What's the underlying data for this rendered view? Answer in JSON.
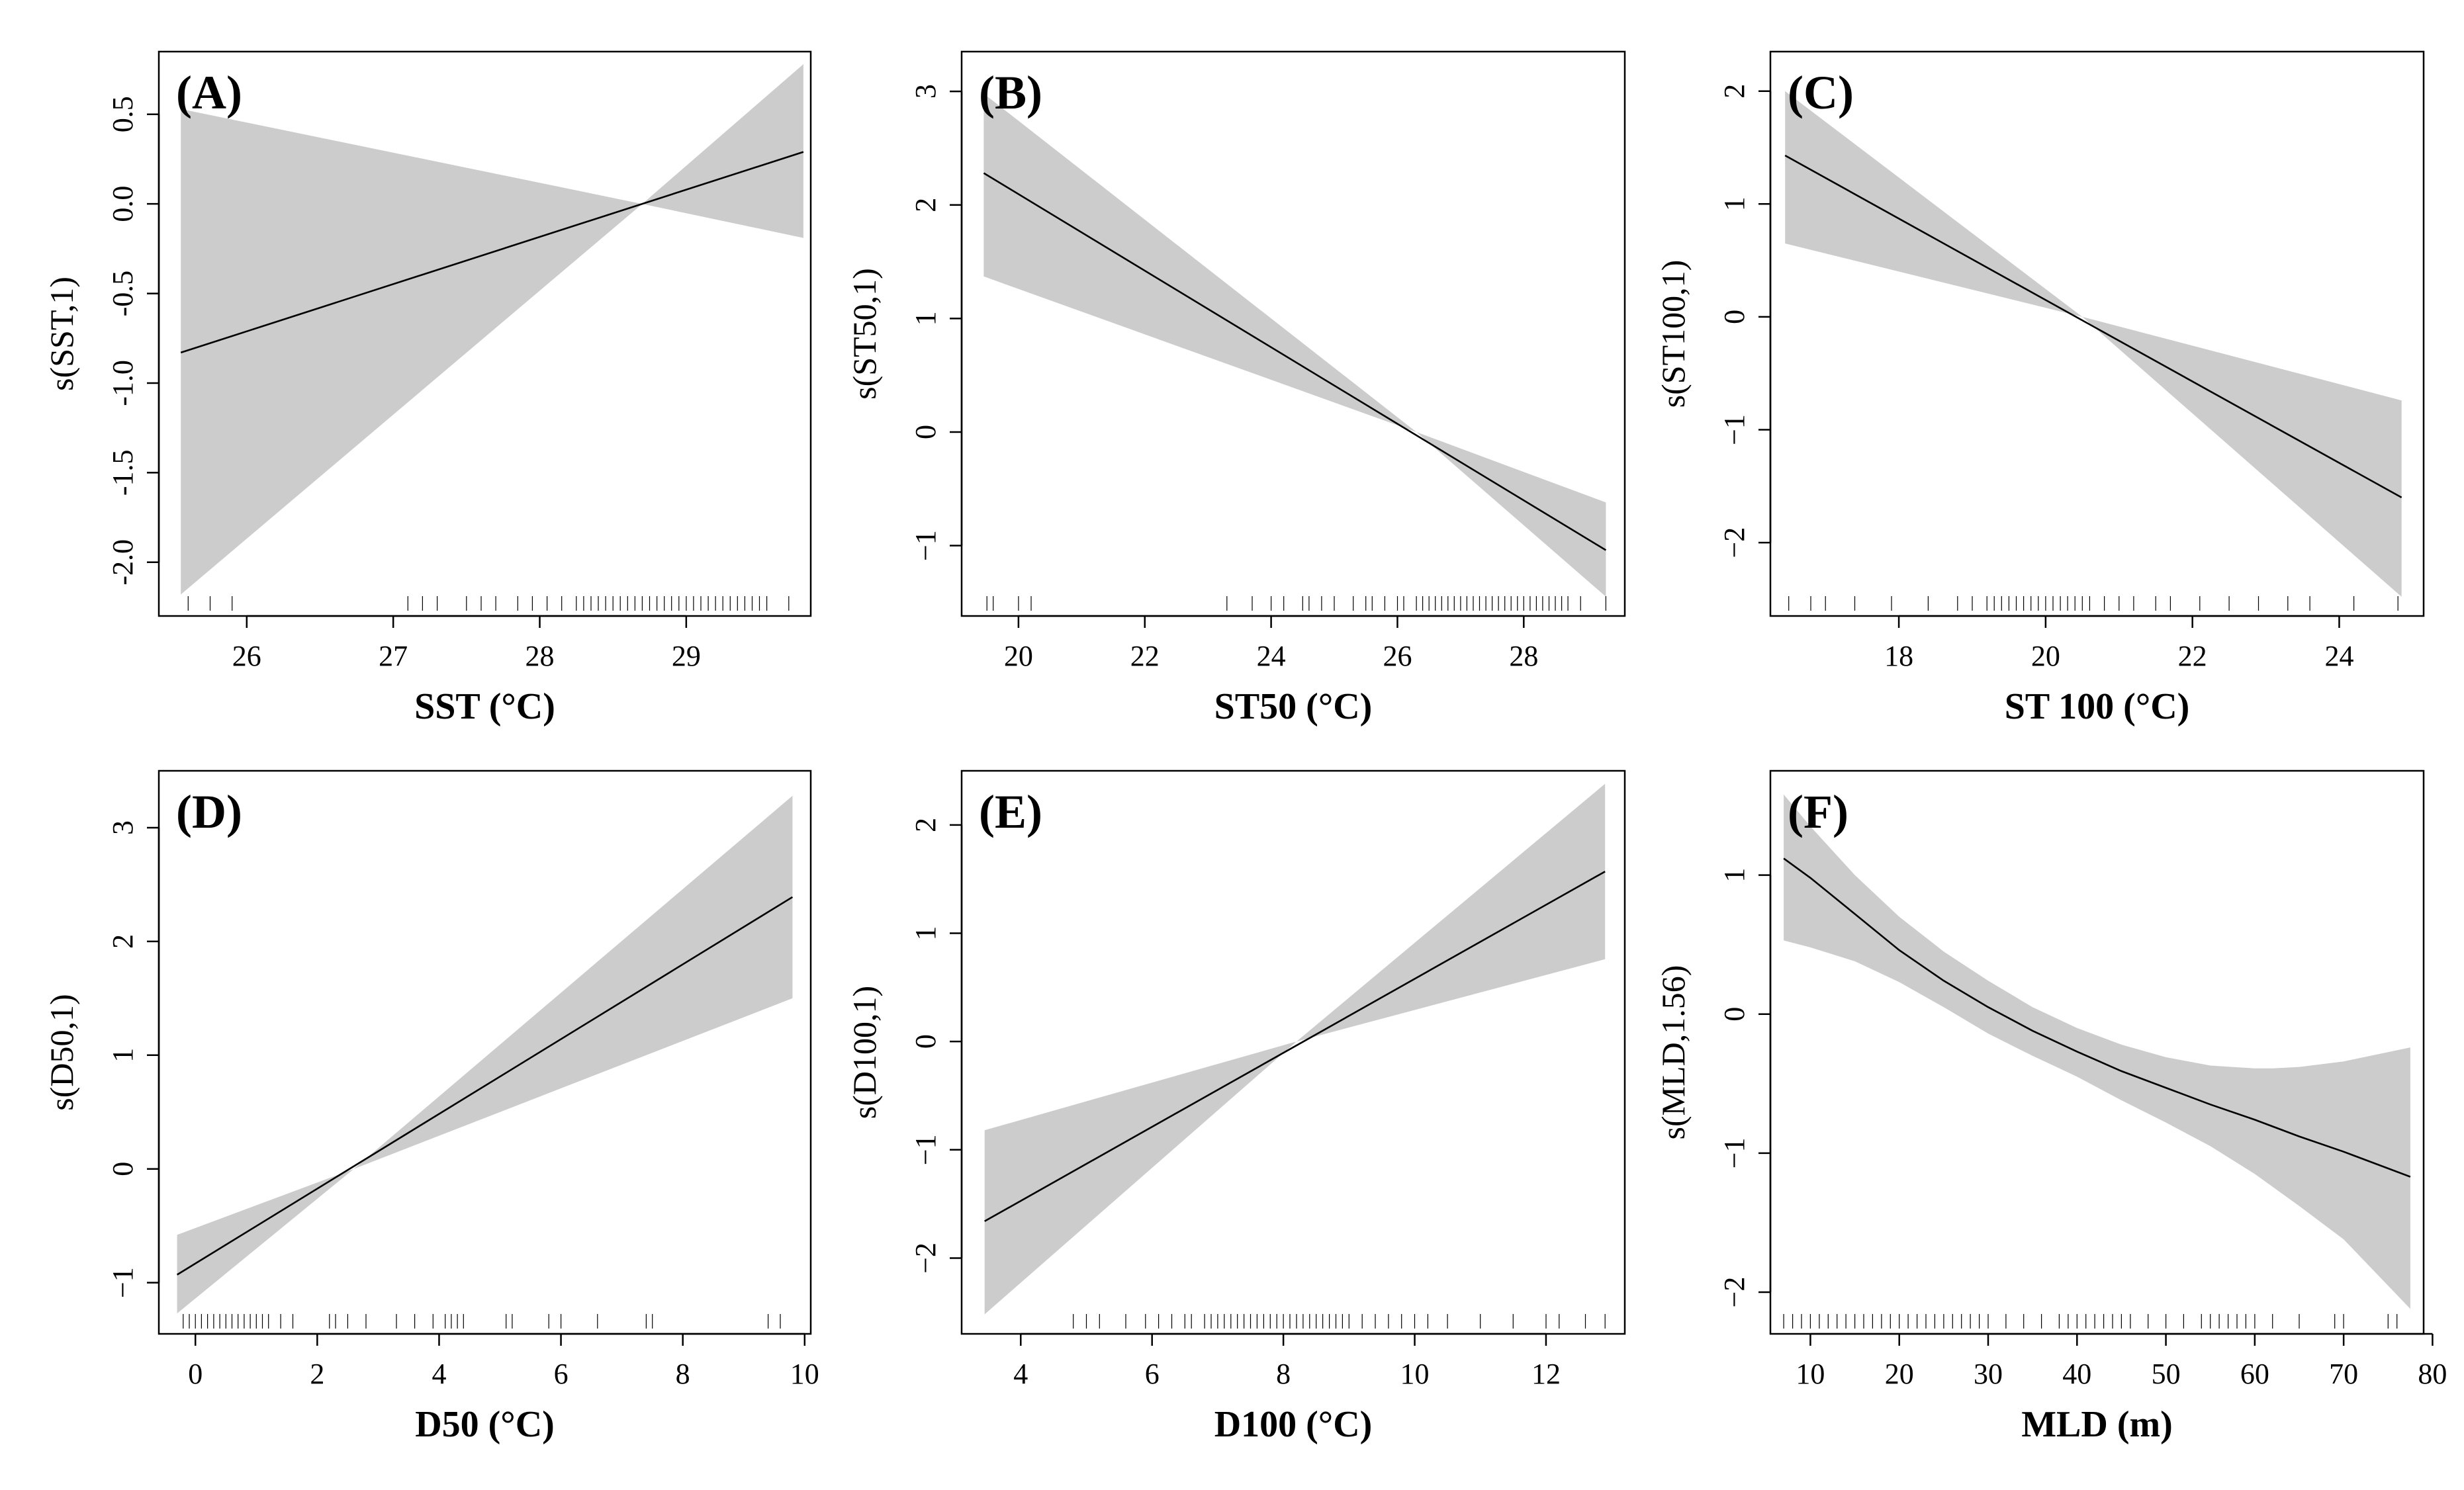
{
  "chart_data": [
    {
      "type": "line",
      "panel_label": "(A)",
      "xlabel": "SST (°C)",
      "ylabel": "s(SST,1)",
      "xlim": [
        25.4,
        29.85
      ],
      "ylim": [
        -2.3,
        0.85
      ],
      "xticks": [
        26,
        27,
        28,
        29
      ],
      "yticks": [
        -2.0,
        -1.5,
        -1.0,
        -0.5,
        0.0,
        0.5
      ],
      "ytick_labels": [
        "-2.0",
        "-1.5",
        "-1.0",
        "-0.5",
        "0.0",
        "0.5"
      ],
      "series": [
        {
          "name": "smooth",
          "x": [
            25.55,
            29.8
          ],
          "y": [
            -0.83,
            0.29
          ]
        },
        {
          "name": "ci_upper",
          "x": [
            25.55,
            28.7,
            29.8
          ],
          "y": [
            0.53,
            0.0,
            -0.19
          ]
        },
        {
          "name": "ci_lower",
          "x": [
            25.55,
            28.7,
            29.8
          ],
          "y": [
            -2.18,
            0.0,
            0.78
          ]
        }
      ],
      "rug": [
        25.6,
        25.75,
        25.9,
        27.1,
        27.2,
        27.3,
        27.5,
        27.6,
        27.7,
        27.85,
        27.95,
        28.05,
        28.15,
        28.25,
        28.3,
        28.35,
        28.4,
        28.45,
        28.5,
        28.55,
        28.6,
        28.65,
        28.7,
        28.75,
        28.8,
        28.85,
        28.9,
        28.95,
        29.0,
        29.05,
        29.1,
        29.15,
        29.2,
        29.25,
        29.3,
        29.35,
        29.4,
        29.45,
        29.5,
        29.55,
        29.7
      ]
    },
    {
      "type": "line",
      "panel_label": "(B)",
      "xlabel": "ST50 (°C)",
      "ylabel": "s(ST50,1)",
      "xlim": [
        19.1,
        29.6
      ],
      "ylim": [
        -1.62,
        3.35
      ],
      "xticks": [
        20,
        22,
        24,
        26,
        28
      ],
      "yticks": [
        -1,
        0,
        1,
        2,
        3
      ],
      "ytick_labels": [
        "−1",
        "0",
        "1",
        "2",
        "3"
      ],
      "series": [
        {
          "name": "smooth",
          "x": [
            19.45,
            29.3
          ],
          "y": [
            2.28,
            -1.04
          ]
        },
        {
          "name": "ci_upper",
          "x": [
            19.45,
            26.3,
            29.3
          ],
          "y": [
            2.98,
            0.0,
            -0.62
          ]
        },
        {
          "name": "ci_lower",
          "x": [
            19.45,
            26.3,
            29.3
          ],
          "y": [
            1.37,
            0.0,
            -1.45
          ]
        }
      ],
      "rug": [
        19.5,
        19.6,
        20.0,
        20.2,
        23.3,
        23.7,
        24.0,
        24.2,
        24.5,
        24.6,
        24.8,
        25.0,
        25.3,
        25.5,
        25.6,
        25.8,
        26.0,
        26.1,
        26.3,
        26.4,
        26.5,
        26.6,
        26.7,
        26.8,
        26.9,
        27.0,
        27.1,
        27.2,
        27.3,
        27.4,
        27.5,
        27.6,
        27.7,
        27.8,
        27.9,
        28.0,
        28.1,
        28.2,
        28.3,
        28.4,
        28.5,
        28.6,
        28.7,
        28.9,
        29.3
      ]
    },
    {
      "type": "line",
      "panel_label": "(C)",
      "xlabel": "ST 100 (°C)",
      "ylabel": "s(ST100,1)",
      "xlim": [
        16.25,
        25.15
      ],
      "ylim": [
        -2.65,
        2.35
      ],
      "xticks": [
        18,
        20,
        22,
        24
      ],
      "yticks": [
        -2,
        -1,
        0,
        1,
        2
      ],
      "ytick_labels": [
        "−2",
        "−1",
        "0",
        "1",
        "2"
      ],
      "series": [
        {
          "name": "smooth",
          "x": [
            16.45,
            24.85
          ],
          "y": [
            1.43,
            -1.6
          ]
        },
        {
          "name": "ci_upper",
          "x": [
            16.45,
            20.5,
            24.85
          ],
          "y": [
            2.0,
            0.0,
            -0.74
          ]
        },
        {
          "name": "ci_lower",
          "x": [
            16.45,
            20.5,
            24.85
          ],
          "y": [
            0.65,
            0.0,
            -2.48
          ]
        }
      ],
      "rug": [
        16.5,
        16.8,
        17.0,
        17.4,
        17.9,
        18.4,
        18.8,
        19.0,
        19.2,
        19.3,
        19.4,
        19.5,
        19.6,
        19.7,
        19.8,
        19.9,
        20.0,
        20.1,
        20.2,
        20.3,
        20.4,
        20.5,
        20.6,
        20.8,
        21.0,
        21.2,
        21.5,
        21.7,
        22.1,
        22.5,
        22.9,
        23.3,
        23.6,
        24.2,
        24.8
      ]
    },
    {
      "type": "line",
      "panel_label": "(D)",
      "xlabel": "D50 (°C)",
      "ylabel": "s(D50,1)",
      "xlim": [
        -0.6,
        10.1
      ],
      "ylim": [
        -1.45,
        3.5
      ],
      "xticks": [
        0,
        2,
        4,
        6,
        8,
        10
      ],
      "yticks": [
        -1,
        0,
        1,
        2,
        3
      ],
      "ytick_labels": [
        "−1",
        "0",
        "1",
        "2",
        "3"
      ],
      "series": [
        {
          "name": "smooth",
          "x": [
            -0.3,
            9.8
          ],
          "y": [
            -0.93,
            2.39
          ]
        },
        {
          "name": "ci_upper",
          "x": [
            -0.3,
            2.6,
            9.8
          ],
          "y": [
            -0.58,
            0.0,
            3.28
          ]
        },
        {
          "name": "ci_lower",
          "x": [
            -0.3,
            2.6,
            9.8
          ],
          "y": [
            -1.27,
            0.0,
            1.5
          ]
        }
      ],
      "rug": [
        -0.2,
        -0.1,
        0.0,
        0.1,
        0.2,
        0.3,
        0.4,
        0.5,
        0.6,
        0.7,
        0.8,
        0.9,
        1.0,
        1.1,
        1.2,
        1.4,
        1.6,
        2.2,
        2.3,
        2.5,
        2.8,
        3.3,
        3.6,
        3.9,
        4.1,
        4.2,
        4.3,
        4.4,
        5.1,
        5.2,
        5.8,
        6.0,
        6.6,
        7.4,
        7.5,
        9.4,
        9.6
      ]
    },
    {
      "type": "line",
      "panel_label": "(E)",
      "xlabel": "D100 (°C)",
      "ylabel": "s(D100,1)",
      "xlim": [
        3.1,
        13.2
      ],
      "ylim": [
        -2.7,
        2.5
      ],
      "xticks": [
        4,
        6,
        8,
        10,
        12
      ],
      "yticks": [
        -2,
        -1,
        0,
        1,
        2
      ],
      "ytick_labels": [
        "−2",
        "−1",
        "0",
        "1",
        "2"
      ],
      "series": [
        {
          "name": "smooth",
          "x": [
            3.45,
            12.9
          ],
          "y": [
            -1.66,
            1.57
          ]
        },
        {
          "name": "ci_upper",
          "x": [
            3.45,
            8.2,
            12.9
          ],
          "y": [
            -0.82,
            0.0,
            2.38
          ]
        },
        {
          "name": "ci_lower",
          "x": [
            3.45,
            8.2,
            12.9
          ],
          "y": [
            -2.52,
            0.0,
            0.76
          ]
        }
      ],
      "rug": [
        4.8,
        5.0,
        5.2,
        5.6,
        5.9,
        6.1,
        6.3,
        6.5,
        6.6,
        6.8,
        6.9,
        7.0,
        7.1,
        7.2,
        7.3,
        7.4,
        7.5,
        7.6,
        7.7,
        7.8,
        7.9,
        8.0,
        8.1,
        8.2,
        8.3,
        8.4,
        8.5,
        8.6,
        8.7,
        8.8,
        8.9,
        9.0,
        9.2,
        9.4,
        9.6,
        9.8,
        10.0,
        10.2,
        10.5,
        11.0,
        11.5,
        12.0,
        12.2,
        12.6,
        12.9
      ]
    },
    {
      "type": "line",
      "panel_label": "(F)",
      "xlabel": "MLD (m)",
      "ylabel": "s(MLD,1.56)",
      "xlim": [
        5.5,
        79
      ],
      "ylim": [
        -2.3,
        1.75
      ],
      "xticks": [
        10,
        20,
        30,
        40,
        50,
        60,
        70,
        80
      ],
      "yticks": [
        -2,
        -1,
        0,
        1
      ],
      "ytick_labels": [
        "−2",
        "−1",
        "0",
        "1"
      ],
      "series": [
        {
          "name": "smooth",
          "x": [
            7,
            10,
            15,
            20,
            25,
            30,
            35,
            40,
            45,
            50,
            55,
            60,
            65,
            70,
            77.5
          ],
          "y": [
            1.12,
            0.98,
            0.72,
            0.46,
            0.24,
            0.05,
            -0.12,
            -0.27,
            -0.41,
            -0.53,
            -0.65,
            -0.76,
            -0.88,
            -0.99,
            -1.17
          ]
        },
        {
          "name": "ci_upper",
          "x": [
            7,
            10,
            15,
            20,
            25,
            30,
            35,
            40,
            45,
            50,
            55,
            60,
            62,
            65,
            70,
            77.5
          ],
          "y": [
            1.58,
            1.35,
            1.0,
            0.7,
            0.45,
            0.24,
            0.05,
            -0.1,
            -0.22,
            -0.31,
            -0.37,
            -0.39,
            -0.39,
            -0.38,
            -0.34,
            -0.24
          ]
        },
        {
          "name": "ci_lower",
          "x": [
            7,
            10,
            15,
            20,
            25,
            30,
            35,
            40,
            45,
            50,
            55,
            60,
            65,
            70,
            77.5
          ],
          "y": [
            0.53,
            0.48,
            0.38,
            0.23,
            0.05,
            -0.14,
            -0.3,
            -0.45,
            -0.62,
            -0.78,
            -0.95,
            -1.15,
            -1.38,
            -1.62,
            -2.12
          ]
        }
      ],
      "rug": [
        7,
        8,
        9,
        10,
        11,
        12,
        13,
        14,
        15,
        16,
        17,
        18,
        19,
        20,
        21,
        22,
        23,
        24,
        25,
        26,
        27,
        28,
        29,
        30,
        32,
        34,
        36,
        38,
        39,
        40,
        41,
        42,
        43,
        44,
        45,
        46,
        48,
        50,
        52,
        54,
        55,
        56,
        57,
        58,
        59,
        60,
        62,
        65,
        69,
        70,
        75,
        76
      ]
    }
  ]
}
